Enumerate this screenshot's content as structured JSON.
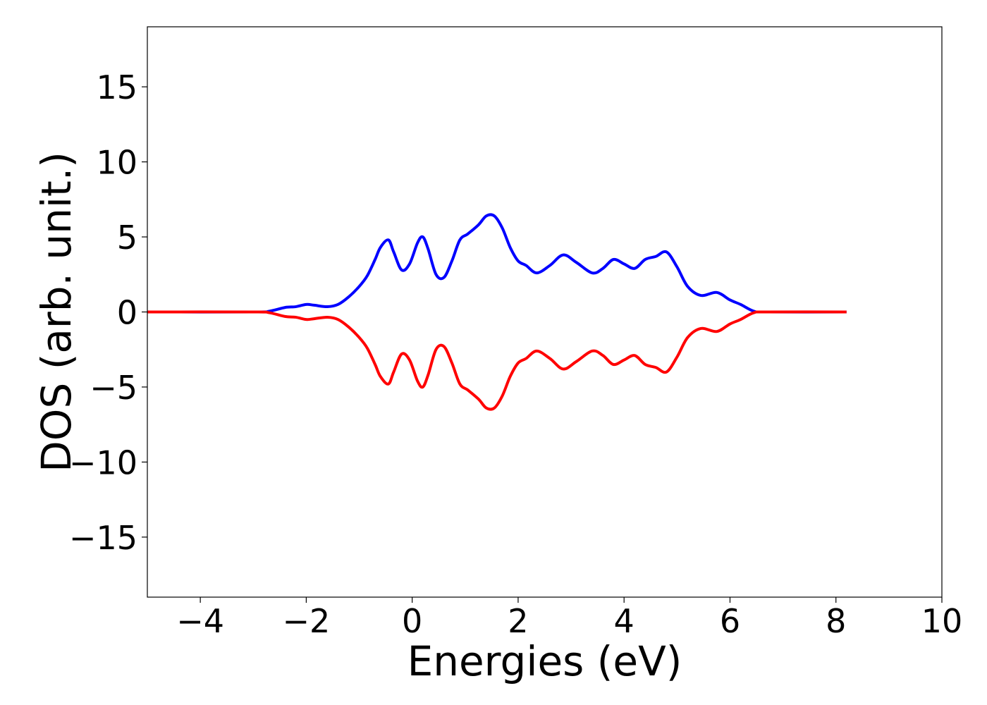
{
  "chart_data": {
    "type": "line",
    "xlabel": "Energies (eV)",
    "ylabel": "DOS (arb. unit.)",
    "xlim": [
      -5,
      10
    ],
    "ylim": [
      -19,
      19
    ],
    "xticks": [
      -4,
      -2,
      0,
      2,
      4,
      6,
      8,
      10
    ],
    "yticks": [
      -15,
      -10,
      -5,
      0,
      5,
      10,
      15
    ],
    "grid": false,
    "legend": "none",
    "series": [
      {
        "color": "#0000ff",
        "x": [
          -5.0,
          -3.0,
          -2.7,
          -2.4,
          -2.2,
          -2.0,
          -1.85,
          -1.6,
          -1.4,
          -1.2,
          -1.0,
          -0.85,
          -0.7,
          -0.6,
          -0.45,
          -0.35,
          -0.2,
          -0.05,
          0.1,
          0.2,
          0.3,
          0.45,
          0.6,
          0.75,
          0.9,
          1.05,
          1.25,
          1.4,
          1.55,
          1.7,
          1.85,
          2.0,
          2.15,
          2.35,
          2.6,
          2.85,
          3.1,
          3.4,
          3.6,
          3.8,
          4.0,
          4.2,
          4.4,
          4.6,
          4.8,
          5.0,
          5.2,
          5.45,
          5.75,
          6.0,
          6.2,
          6.45,
          6.7,
          8.2
        ],
        "y": [
          0,
          0,
          0.05,
          0.3,
          0.35,
          0.5,
          0.45,
          0.35,
          0.5,
          1.0,
          1.7,
          2.4,
          3.5,
          4.3,
          4.8,
          4.0,
          2.8,
          3.2,
          4.6,
          5.0,
          4.2,
          2.5,
          2.3,
          3.4,
          4.8,
          5.2,
          5.8,
          6.4,
          6.4,
          5.6,
          4.3,
          3.4,
          3.1,
          2.6,
          3.1,
          3.8,
          3.3,
          2.6,
          2.9,
          3.5,
          3.2,
          2.9,
          3.5,
          3.7,
          4.0,
          3.0,
          1.7,
          1.1,
          1.3,
          0.8,
          0.5,
          0.05,
          0,
          0
        ]
      },
      {
        "color": "#ff0000",
        "x": [
          -5.0,
          -3.0,
          -2.7,
          -2.4,
          -2.2,
          -2.0,
          -1.85,
          -1.6,
          -1.4,
          -1.2,
          -1.0,
          -0.85,
          -0.7,
          -0.6,
          -0.45,
          -0.35,
          -0.2,
          -0.05,
          0.1,
          0.2,
          0.3,
          0.45,
          0.6,
          0.75,
          0.9,
          1.05,
          1.25,
          1.4,
          1.55,
          1.7,
          1.85,
          2.0,
          2.15,
          2.35,
          2.6,
          2.85,
          3.1,
          3.4,
          3.6,
          3.8,
          4.0,
          4.2,
          4.4,
          4.6,
          4.8,
          5.0,
          5.2,
          5.45,
          5.75,
          6.0,
          6.2,
          6.45,
          6.7,
          8.2
        ],
        "y": [
          0,
          0,
          -0.05,
          -0.3,
          -0.35,
          -0.5,
          -0.45,
          -0.35,
          -0.5,
          -1.0,
          -1.7,
          -2.4,
          -3.5,
          -4.3,
          -4.8,
          -4.0,
          -2.8,
          -3.2,
          -4.6,
          -5.0,
          -4.2,
          -2.5,
          -2.3,
          -3.4,
          -4.8,
          -5.2,
          -5.8,
          -6.4,
          -6.4,
          -5.6,
          -4.3,
          -3.4,
          -3.1,
          -2.6,
          -3.1,
          -3.8,
          -3.3,
          -2.6,
          -2.9,
          -3.5,
          -3.2,
          -2.9,
          -3.5,
          -3.7,
          -4.0,
          -3.0,
          -1.7,
          -1.1,
          -1.3,
          -0.8,
          -0.5,
          -0.05,
          0,
          0
        ]
      }
    ]
  }
}
